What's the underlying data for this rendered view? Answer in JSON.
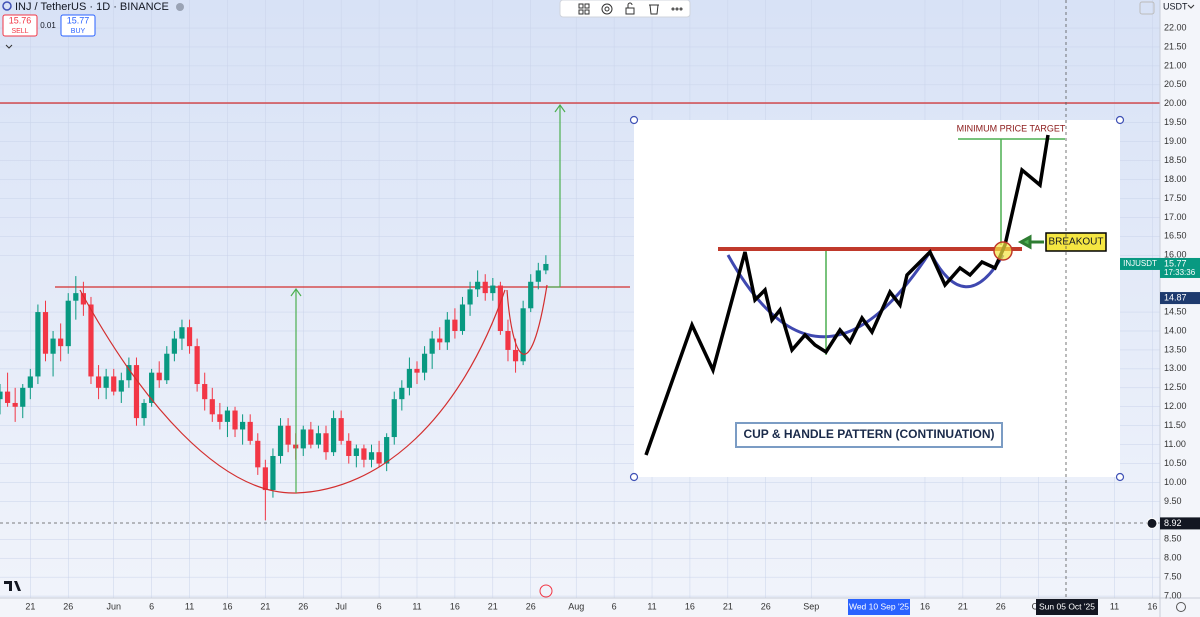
{
  "toolbar": {
    "symbol": "INJ / TetherUS · 1D · BINANCE",
    "sell_price": "15.76",
    "sell_label": "SELL",
    "spread": "0.01",
    "buy_price": "15.77",
    "buy_label": "BUY",
    "currency": "USDT"
  },
  "chart_data": {
    "type": "candlestick",
    "x": [
      "2025-05-17",
      "2025-05-18",
      "2025-05-19",
      "2025-05-20",
      "2025-05-21",
      "2025-05-22",
      "2025-05-23",
      "2025-05-24",
      "2025-05-25",
      "2025-05-26",
      "2025-05-27",
      "2025-05-28",
      "2025-05-29",
      "2025-05-30",
      "2025-05-31",
      "2025-06-01",
      "2025-06-02",
      "2025-06-03",
      "2025-06-04",
      "2025-06-05",
      "2025-06-06",
      "2025-06-07",
      "2025-06-08",
      "2025-06-09",
      "2025-06-10",
      "2025-06-11",
      "2025-06-12",
      "2025-06-13",
      "2025-06-14",
      "2025-06-15",
      "2025-06-16",
      "2025-06-17",
      "2025-06-18",
      "2025-06-19",
      "2025-06-20",
      "2025-06-21",
      "2025-06-22",
      "2025-06-23",
      "2025-06-24",
      "2025-06-25",
      "2025-06-26",
      "2025-06-27",
      "2025-06-28",
      "2025-06-29",
      "2025-06-30",
      "2025-07-01",
      "2025-07-02",
      "2025-07-03",
      "2025-07-04",
      "2025-07-05",
      "2025-07-06",
      "2025-07-07",
      "2025-07-08",
      "2025-07-09",
      "2025-07-10",
      "2025-07-11",
      "2025-07-12",
      "2025-07-13",
      "2025-07-14",
      "2025-07-15",
      "2025-07-16",
      "2025-07-17",
      "2025-07-18",
      "2025-07-19",
      "2025-07-20",
      "2025-07-21",
      "2025-07-22",
      "2025-07-23",
      "2025-07-24",
      "2025-07-25",
      "2025-07-26",
      "2025-07-27",
      "2025-07-28"
    ],
    "open": [
      12.2,
      12.4,
      12.1,
      12.0,
      12.5,
      12.8,
      14.5,
      13.4,
      13.8,
      13.6,
      14.8,
      15.0,
      14.7,
      12.8,
      12.5,
      12.8,
      12.4,
      12.7,
      13.1,
      11.7,
      12.1,
      12.9,
      12.7,
      13.4,
      13.8,
      14.1,
      13.6,
      12.6,
      12.2,
      11.8,
      11.6,
      11.9,
      11.4,
      11.6,
      11.1,
      10.4,
      9.8,
      10.7,
      11.5,
      11.0,
      10.9,
      11.4,
      11.0,
      11.3,
      10.8,
      11.7,
      11.1,
      10.7,
      10.9,
      10.6,
      10.8,
      10.5,
      11.2,
      12.2,
      12.5,
      13.0,
      12.9,
      13.4,
      13.8,
      13.7,
      14.3,
      14.0,
      14.7,
      15.1,
      15.3,
      15.0,
      15.2,
      14.0,
      13.5,
      13.2,
      14.6,
      15.3,
      15.6
    ],
    "high": [
      12.6,
      12.9,
      12.5,
      12.6,
      13.0,
      14.7,
      14.8,
      14.0,
      14.2,
      15.0,
      15.45,
      15.3,
      14.9,
      13.1,
      13.0,
      13.0,
      12.9,
      13.3,
      13.3,
      12.2,
      13.0,
      13.2,
      13.6,
      14.0,
      14.3,
      14.3,
      13.8,
      12.9,
      12.5,
      12.1,
      12.0,
      12.0,
      11.8,
      11.8,
      11.3,
      10.6,
      10.9,
      11.7,
      11.7,
      11.3,
      11.5,
      11.6,
      11.5,
      11.5,
      11.9,
      11.9,
      11.3,
      11.0,
      11.0,
      11.0,
      11.1,
      11.3,
      12.4,
      12.7,
      13.3,
      13.2,
      13.6,
      14.0,
      14.1,
      14.5,
      14.6,
      14.9,
      15.3,
      15.6,
      15.5,
      15.4,
      15.3,
      14.3,
      13.8,
      14.8,
      15.5,
      15.8,
      16.0
    ],
    "low": [
      11.8,
      12.0,
      11.6,
      11.7,
      12.2,
      12.6,
      13.2,
      12.8,
      13.2,
      13.4,
      14.3,
      14.4,
      12.6,
      12.2,
      12.2,
      12.3,
      12.1,
      12.5,
      11.5,
      11.5,
      12.0,
      12.5,
      12.6,
      13.2,
      13.5,
      13.4,
      12.4,
      11.9,
      11.6,
      11.4,
      11.2,
      11.2,
      11.0,
      11.0,
      10.2,
      9.0,
      9.6,
      10.5,
      10.8,
      10.6,
      10.7,
      10.9,
      10.9,
      10.6,
      10.7,
      11.0,
      10.5,
      10.4,
      10.4,
      10.4,
      10.4,
      10.3,
      11.0,
      11.9,
      12.3,
      12.6,
      12.7,
      13.0,
      13.5,
      13.5,
      13.8,
      13.9,
      14.4,
      14.9,
      14.8,
      14.8,
      13.9,
      13.2,
      12.9,
      13.1,
      14.5,
      15.1,
      15.5
    ],
    "close": [
      12.4,
      12.1,
      12.0,
      12.5,
      12.8,
      14.5,
      13.4,
      13.8,
      13.6,
      14.8,
      15.0,
      14.7,
      12.8,
      12.5,
      12.8,
      12.4,
      12.7,
      13.1,
      11.7,
      12.1,
      12.9,
      12.7,
      13.4,
      13.8,
      14.1,
      13.6,
      12.6,
      12.2,
      11.8,
      11.6,
      11.9,
      11.4,
      11.6,
      11.1,
      10.4,
      9.8,
      10.7,
      11.5,
      11.0,
      10.9,
      11.4,
      11.0,
      11.3,
      10.8,
      11.7,
      11.1,
      10.7,
      10.9,
      10.6,
      10.8,
      10.5,
      11.2,
      12.2,
      12.5,
      13.0,
      12.9,
      13.4,
      13.8,
      13.7,
      14.3,
      14.0,
      14.7,
      15.1,
      15.3,
      15.0,
      15.2,
      14.0,
      13.5,
      13.2,
      14.6,
      15.3,
      15.6,
      15.77
    ],
    "up_color": "#089981",
    "down_color": "#f23645",
    "xlim": [
      "2025-05-17",
      "2025-10-17"
    ],
    "xticks": [
      {
        "value": "2025-05-21",
        "label": "21"
      },
      {
        "value": "2025-05-26",
        "label": "26"
      },
      {
        "value": "2025-06-01",
        "label": "Jun"
      },
      {
        "value": "2025-06-06",
        "label": "6"
      },
      {
        "value": "2025-06-11",
        "label": "11"
      },
      {
        "value": "2025-06-16",
        "label": "16"
      },
      {
        "value": "2025-06-21",
        "label": "21"
      },
      {
        "value": "2025-06-26",
        "label": "26"
      },
      {
        "value": "2025-07-01",
        "label": "Jul"
      },
      {
        "value": "2025-07-06",
        "label": "6"
      },
      {
        "value": "2025-07-11",
        "label": "11"
      },
      {
        "value": "2025-07-16",
        "label": "16"
      },
      {
        "value": "2025-07-21",
        "label": "21"
      },
      {
        "value": "2025-07-26",
        "label": "26"
      },
      {
        "value": "2025-08-01",
        "label": "Aug"
      },
      {
        "value": "2025-08-06",
        "label": "6"
      },
      {
        "value": "2025-08-11",
        "label": "11"
      },
      {
        "value": "2025-08-16",
        "label": "16"
      },
      {
        "value": "2025-08-21",
        "label": "21"
      },
      {
        "value": "2025-08-26",
        "label": "26"
      },
      {
        "value": "2025-09-01",
        "label": "Sep"
      },
      {
        "value": "2025-09-16",
        "label": "16"
      },
      {
        "value": "2025-09-21",
        "label": "21"
      },
      {
        "value": "2025-09-26",
        "label": "26"
      },
      {
        "value": "2025-10-01",
        "label": "Oct"
      },
      {
        "value": "2025-10-11",
        "label": "11"
      },
      {
        "value": "2025-10-16",
        "label": "16"
      }
    ],
    "ylim": [
      6.95,
      22.74
    ],
    "yticks": [
      {
        "value": 22,
        "label": "22.00"
      },
      {
        "value": 21.5,
        "label": "21.50"
      },
      {
        "value": 21,
        "label": "21.00"
      },
      {
        "value": 20.5,
        "label": "20.50"
      },
      {
        "value": 20,
        "label": "20.00"
      },
      {
        "value": 19.5,
        "label": "19.50"
      },
      {
        "value": 19,
        "label": "19.00"
      },
      {
        "value": 18.5,
        "label": "18.50"
      },
      {
        "value": 18,
        "label": "18.00"
      },
      {
        "value": 17.5,
        "label": "17.50"
      },
      {
        "value": 17,
        "label": "17.00"
      },
      {
        "value": 16.5,
        "label": "16.50"
      },
      {
        "value": 16,
        "label": "16.00"
      },
      {
        "value": 14.5,
        "label": "14.50"
      },
      {
        "value": 14,
        "label": "14.00"
      },
      {
        "value": 13.5,
        "label": "13.50"
      },
      {
        "value": 13,
        "label": "13.00"
      },
      {
        "value": 12.5,
        "label": "12.50"
      },
      {
        "value": 12,
        "label": "12.00"
      },
      {
        "value": 11.5,
        "label": "11.50"
      },
      {
        "value": 11,
        "label": "11.00"
      },
      {
        "value": 10.5,
        "label": "10.50"
      },
      {
        "value": 10,
        "label": "10.00"
      },
      {
        "value": 9.5,
        "label": "9.50"
      },
      {
        "value": 8.5,
        "label": "8.50"
      },
      {
        "value": 8,
        "label": "8.00"
      },
      {
        "value": 7.5,
        "label": "7.50"
      },
      {
        "value": 7,
        "label": "7.00"
      }
    ],
    "price_tags": [
      {
        "value": 15.77,
        "label": "15.77",
        "name": "INJUSDT",
        "time": "17:33:36",
        "color": "#089981"
      },
      {
        "value": 14.87,
        "label": "14.87",
        "color": "#1e3a6e"
      },
      {
        "value": 8.92,
        "label": "8.92",
        "color": "#131722"
      }
    ],
    "crosshair_labels": [
      "Wed 10 Sep '25",
      "Sun 05 Oct '25"
    ]
  },
  "inset": {
    "target_label": "MINIMUM PRICE TARGET",
    "breakout_label": "BREAKOUT",
    "caption": "CUP & HANDLE PATTERN (CONTINUATION)"
  }
}
